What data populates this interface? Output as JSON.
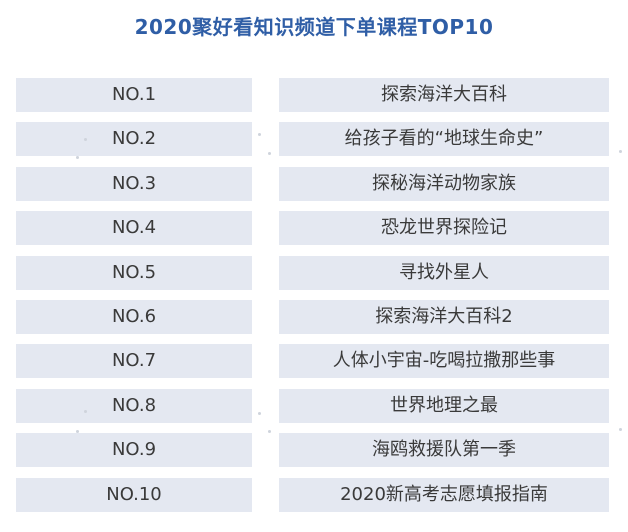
{
  "title": "2020聚好看知识频道下单课程TOP10",
  "rankings": [
    {
      "rank": "NO.1",
      "course": "探索海洋大百科"
    },
    {
      "rank": "NO.2",
      "course": "给孩子看的“地球生命史”"
    },
    {
      "rank": "NO.3",
      "course": "探秘海洋动物家族"
    },
    {
      "rank": "NO.4",
      "course": "恐龙世界探险记"
    },
    {
      "rank": "NO.5",
      "course": "寻找外星人"
    },
    {
      "rank": "NO.6",
      "course": "探索海洋大百科2"
    },
    {
      "rank": "NO.7",
      "course": "人体小宇宙-吃喝拉撒那些事"
    },
    {
      "rank": "NO.8",
      "course": "世界地理之最"
    },
    {
      "rank": "NO.9",
      "course": "海鸥救援队第一季"
    },
    {
      "rank": "NO.10",
      "course": "2020新高考志愿填报指南"
    }
  ],
  "colors": {
    "title": "#2f5ea6",
    "cell_background": "#e4e8f1",
    "cell_text": "#3a3a3a"
  }
}
